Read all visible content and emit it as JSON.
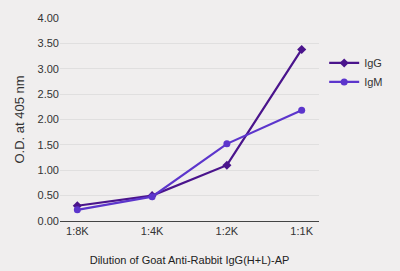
{
  "chart_data": {
    "type": "line",
    "categories": [
      "1:8K",
      "1:4K",
      "1:2K",
      "1:1K"
    ],
    "series": [
      {
        "name": "IgG",
        "color": "#4A148C",
        "marker": "diamond",
        "values": [
          0.3,
          0.5,
          1.1,
          3.38
        ]
      },
      {
        "name": "IgM",
        "color": "#5C35CC",
        "marker": "circle",
        "values": [
          0.22,
          0.48,
          1.52,
          2.18
        ]
      }
    ],
    "xlabel": "Dilution of Goat Anti-Rabbit IgG(H+L)-AP",
    "ylabel": "O.D. at 405 nm",
    "ylim": [
      0.0,
      4.0
    ],
    "yticks": [
      {
        "value": 0.0,
        "label": "0.00"
      },
      {
        "value": 0.5,
        "label": "0.50"
      },
      {
        "value": 1.0,
        "label": "1.00"
      },
      {
        "value": 1.5,
        "label": "1.50"
      },
      {
        "value": 2.0,
        "label": "2.00"
      },
      {
        "value": 2.5,
        "label": "2.50"
      },
      {
        "value": 3.0,
        "label": "3.00"
      },
      {
        "value": 3.5,
        "label": "3.50"
      },
      {
        "value": 4.0,
        "label": "4.00"
      }
    ],
    "grid": true,
    "legend": "right"
  }
}
